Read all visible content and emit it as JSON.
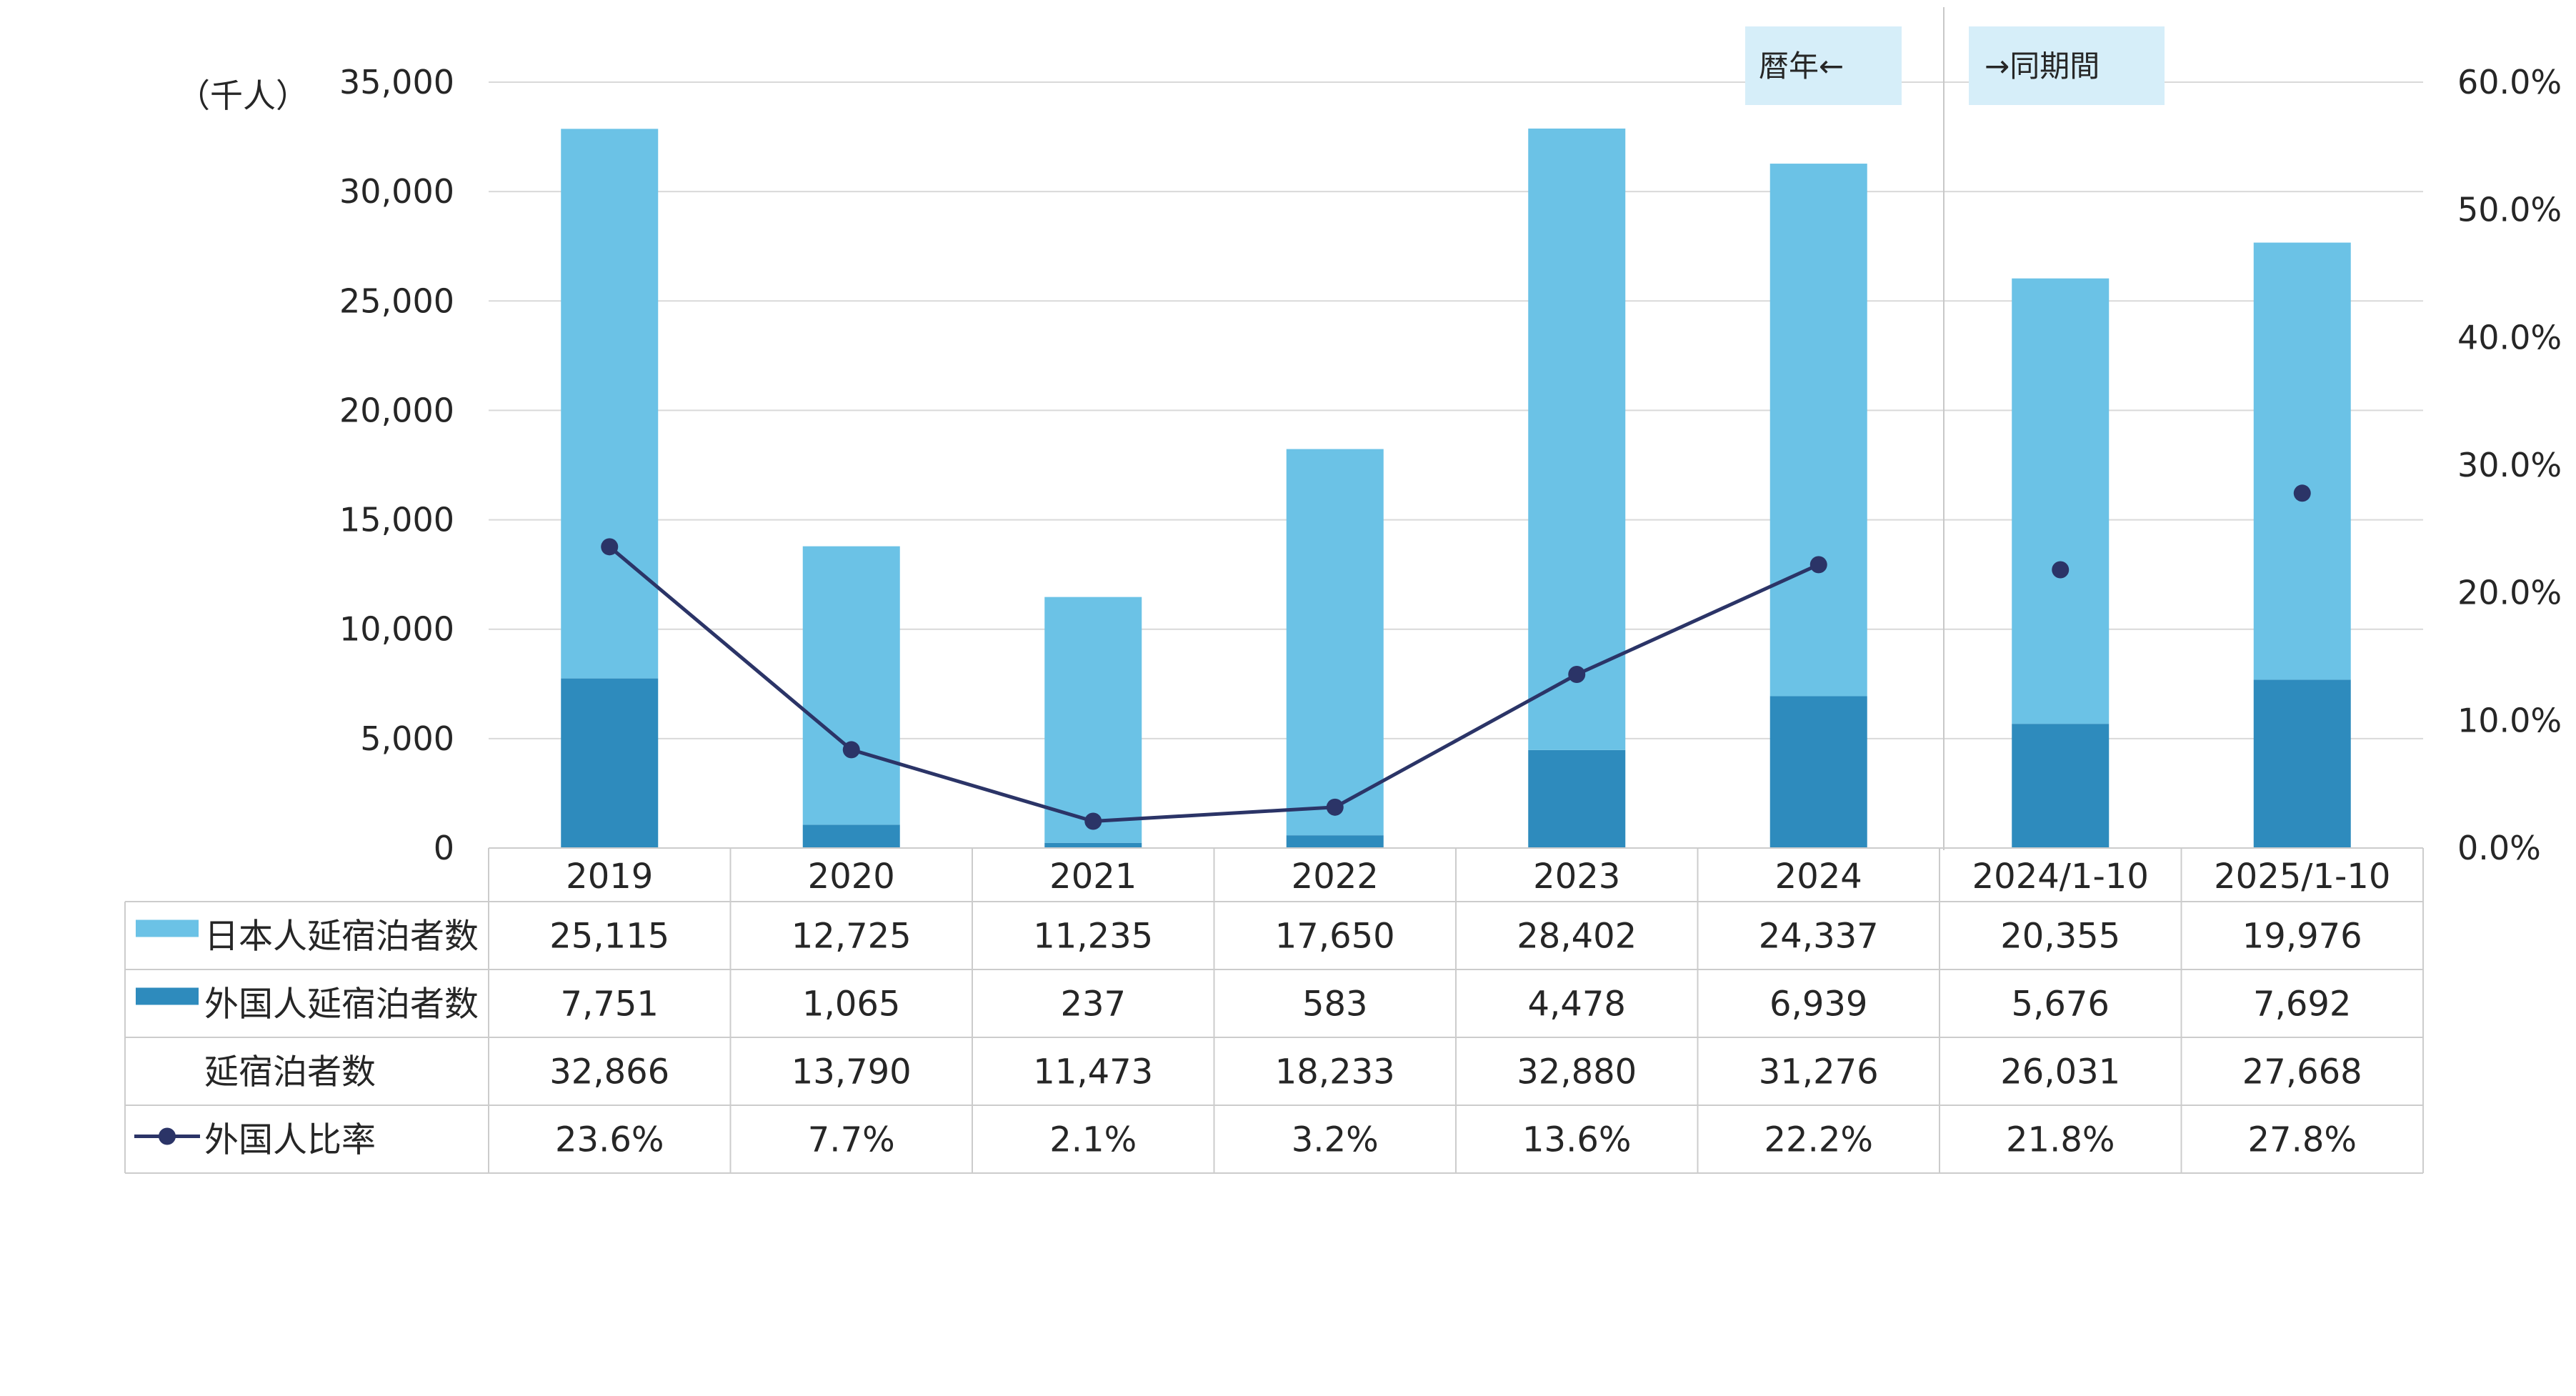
{
  "chart_data": {
    "type": "bar",
    "stacked": true,
    "categories": [
      "2019",
      "2020",
      "2021",
      "2022",
      "2023",
      "2024",
      "2024/1-10",
      "2025/1-10"
    ],
    "series": [
      {
        "name": "日本人延宿泊者数",
        "type": "bar",
        "color": "#6bc2e6",
        "values": [
          25115,
          12725,
          11235,
          17650,
          28402,
          24337,
          20355,
          19976
        ],
        "labels": [
          "25,115",
          "12,725",
          "11,235",
          "17,650",
          "28,402",
          "24,337",
          "20,355",
          "19,976"
        ]
      },
      {
        "name": "外国人延宿泊者数",
        "type": "bar",
        "color": "#2e8bbd",
        "values": [
          7751,
          1065,
          237,
          583,
          4478,
          6939,
          5676,
          7692
        ],
        "labels": [
          "7,751",
          "1,065",
          "237",
          "583",
          "4,478",
          "6,939",
          "5,676",
          "7,692"
        ]
      },
      {
        "name": "延宿泊者数",
        "type": "total",
        "values": [
          32866,
          13790,
          11473,
          18233,
          32880,
          31276,
          26031,
          27668
        ],
        "labels": [
          "32,866",
          "13,790",
          "11,473",
          "18,233",
          "32,880",
          "31,276",
          "26,031",
          "27,668"
        ]
      },
      {
        "name": "外国人比率",
        "type": "line",
        "axis": "right",
        "color": "#2b3467",
        "values": [
          23.6,
          7.7,
          2.1,
          3.2,
          13.6,
          22.2,
          21.8,
          27.8
        ],
        "labels": [
          "23.6%",
          "7.7%",
          "2.1%",
          "3.2%",
          "13.6%",
          "22.2%",
          "21.8%",
          "27.8%"
        ],
        "connected_through_category": "2024"
      }
    ],
    "y_left": {
      "unit_label": "（千人）",
      "ylim": [
        0,
        35000
      ],
      "ticks": [
        "35,000",
        "30,000",
        "25,000",
        "20,000",
        "15,000",
        "10,000",
        "5,000",
        "0"
      ]
    },
    "y_right": {
      "ylim": [
        0,
        60
      ],
      "ticks": [
        "60.0%",
        "50.0%",
        "40.0%",
        "30.0%",
        "20.0%",
        "10.0%",
        "0.0%"
      ]
    },
    "annotations": [
      "暦年←",
      "→同期間"
    ],
    "grid": true,
    "legend": "data-table"
  }
}
